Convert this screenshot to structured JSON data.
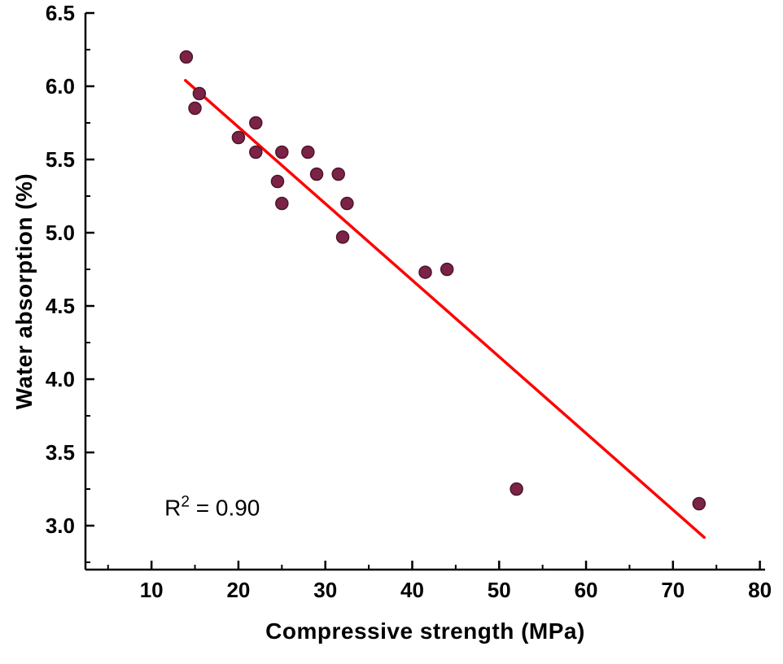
{
  "chart_data": {
    "type": "scatter",
    "title": "",
    "xlabel": "Compressive strength (MPa)",
    "ylabel": "Water absorption (%)",
    "xlim": [
      2.4,
      80.6
    ],
    "ylim": [
      2.7,
      6.5
    ],
    "x_ticks": [
      10,
      20,
      30,
      40,
      50,
      60,
      70,
      80
    ],
    "x_tick_labels": [
      "10",
      "20",
      "30",
      "40",
      "50",
      "60",
      "70",
      "80"
    ],
    "x_minor_step": 5,
    "y_ticks": [
      3.0,
      3.5,
      4.0,
      4.5,
      5.0,
      5.5,
      6.0,
      6.5
    ],
    "y_tick_labels": [
      "3.0",
      "3.5",
      "4.0",
      "4.5",
      "5.0",
      "5.5",
      "6.0",
      "6.5"
    ],
    "y_minor_step": 0.25,
    "grid": false,
    "legend": "none",
    "points": [
      [
        14,
        6.2
      ],
      [
        15.5,
        5.95
      ],
      [
        15,
        5.85
      ],
      [
        20,
        5.65
      ],
      [
        22,
        5.75
      ],
      [
        22,
        5.55
      ],
      [
        25,
        5.55
      ],
      [
        24.5,
        5.35
      ],
      [
        28,
        5.55
      ],
      [
        29,
        5.4
      ],
      [
        31.5,
        5.4
      ],
      [
        25,
        5.2
      ],
      [
        32.5,
        5.2
      ],
      [
        32,
        4.97
      ],
      [
        41.5,
        4.73
      ],
      [
        44,
        4.75
      ],
      [
        52,
        3.25
      ],
      [
        73,
        3.15
      ]
    ],
    "fit_line": {
      "x1": 13.9,
      "y1": 6.04,
      "x2": 73.6,
      "y2": 2.92
    },
    "annotation": {
      "base": "R",
      "sup": "2",
      "rest": " = 0.90",
      "x": 11.5,
      "y": 3.07
    },
    "colors": {
      "point_fill": "#7b2346",
      "point_stroke": "#4f142c",
      "line": "#ff0000",
      "axis": "#000000",
      "text": "#000000"
    }
  }
}
